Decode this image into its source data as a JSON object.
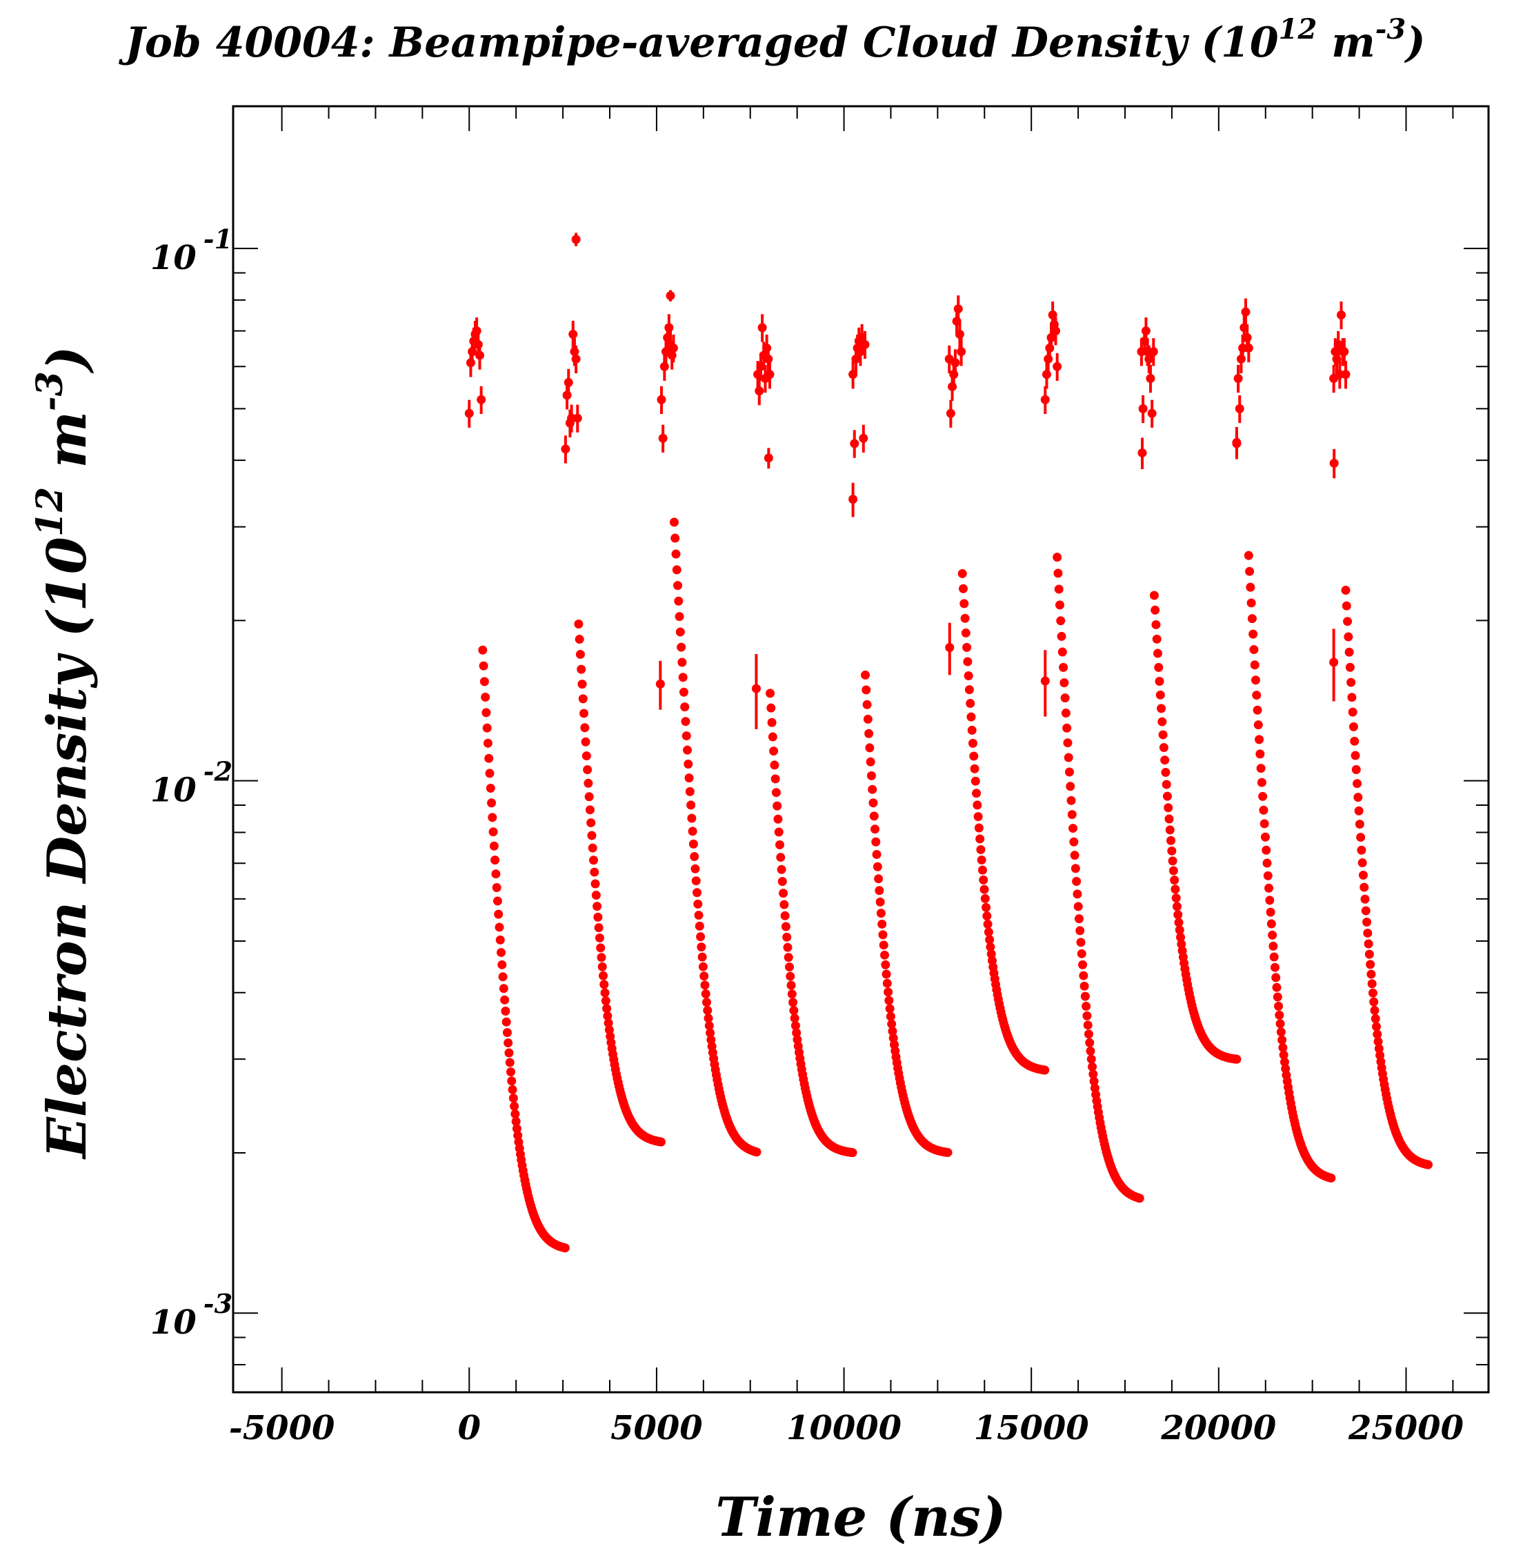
{
  "chart_data": {
    "type": "scatter",
    "title": {
      "main": "Job 40004: Beampipe-averaged Cloud Density (10",
      "sup1": "12",
      "mid": " m",
      "sup2": "-3",
      "end": ")"
    },
    "xlabel": "Time (ns)",
    "ylabel": {
      "main": "Electron Density (10",
      "sup1": "12",
      "mid": " m",
      "sup2": "-3",
      "end": ")"
    },
    "x_scale": "linear",
    "y_scale": "log",
    "xlim": [
      -6300,
      27200
    ],
    "ylim": [
      0.00071,
      0.185
    ],
    "x_ticks": [
      -5000,
      0,
      5000,
      10000,
      15000,
      20000,
      25000
    ],
    "x_tick_labels": [
      "-5000",
      "0",
      "5000",
      "10000",
      "15000",
      "20000",
      "25000"
    ],
    "y_ticks": [
      {
        "value": 0.1,
        "base": "10",
        "exp": "-1"
      },
      {
        "value": 0.01,
        "base": "10",
        "exp": "-2"
      },
      {
        "value": 0.001,
        "base": "10",
        "exp": "-3"
      }
    ],
    "grid": false,
    "legend": "none",
    "marker_color": "#ff0000",
    "series": [
      {
        "points": [
          {
            "x": 5100,
            "y": 0.0152,
            "err": 0.0016
          },
          {
            "x": 7660,
            "y": 0.0149,
            "err": 0.0024
          },
          {
            "x": 12820,
            "y": 0.0178,
            "err": 0.002
          },
          {
            "x": 15370,
            "y": 0.0154,
            "err": 0.0022
          },
          {
            "x": 23070,
            "y": 0.0167,
            "err": 0.0026
          },
          {
            "x": 10240,
            "y": 0.0338,
            "err": 0.0025
          },
          {
            "x": 2850,
            "y": 0.104,
            "err": 0.003
          },
          {
            "x": 5370,
            "y": 0.0815,
            "err": 0.002
          },
          {
            "x": 7990,
            "y": 0.0404,
            "err": 0.0018
          },
          {
            "x": 17960,
            "y": 0.0413,
            "err": 0.0028
          },
          {
            "x": 20480,
            "y": 0.0432,
            "err": 0.003
          },
          {
            "x": 23080,
            "y": 0.0395,
            "err": 0.0025
          }
        ],
        "clusters": [
          {
            "t0": 0,
            "base": [
              0.049,
              0.061,
              0.064,
              0.067,
              0.069,
              0.07,
              0.066,
              0.063,
              0.052
            ]
          },
          {
            "t0": 2570,
            "base": [
              0.042,
              0.053,
              0.056,
              0.047,
              0.048,
              0.069,
              0.064,
              0.062,
              0.048
            ]
          },
          {
            "t0": 5130,
            "base": [
              0.052,
              0.044,
              0.06,
              0.064,
              0.068,
              0.071,
              0.066,
              0.063,
              0.065
            ]
          },
          {
            "t0": 7700,
            "base": [
              0.058,
              0.054,
              0.06,
              0.071,
              0.063,
              0.057,
              0.065,
              0.062,
              0.058
            ]
          },
          {
            "t0": 10240,
            "base": [
              0.058,
              0.043,
              0.062,
              0.065,
              0.067,
              0.064,
              0.068,
              0.044,
              0.066
            ]
          },
          {
            "t0": 12810,
            "base": [
              0.062,
              0.049,
              0.055,
              0.058,
              0.061,
              0.073,
              0.077,
              0.069,
              0.064
            ]
          },
          {
            "t0": 15370,
            "base": [
              0.052,
              0.058,
              0.062,
              0.065,
              0.068,
              0.075,
              0.072,
              0.07,
              0.06
            ]
          },
          {
            "t0": 17940,
            "base": [
              0.064,
              0.05,
              0.067,
              0.07,
              0.064,
              0.062,
              0.057,
              0.049,
              0.064
            ]
          },
          {
            "t0": 20480,
            "base": [
              0.043,
              0.057,
              0.05,
              0.062,
              0.065,
              0.071,
              0.076,
              0.068,
              0.065
            ]
          },
          {
            "t0": 23070,
            "base": [
              0.057,
              0.064,
              0.062,
              0.066,
              0.058,
              0.075,
              0.064,
              0.064,
              0.058
            ]
          }
        ],
        "decays": [
          {
            "t0": 360,
            "peak": 0.0176,
            "end": 0.00131,
            "n": 95
          },
          {
            "t0": 2920,
            "peak": 0.0197,
            "end": 0.00208,
            "n": 95
          },
          {
            "t0": 5470,
            "peak": 0.0306,
            "end": 0.00198,
            "n": 95
          },
          {
            "t0": 8030,
            "peak": 0.0146,
            "end": 0.00199,
            "n": 95
          },
          {
            "t0": 10570,
            "peak": 0.0158,
            "end": 0.00199,
            "n": 95
          },
          {
            "t0": 13160,
            "peak": 0.0245,
            "end": 0.00284,
            "n": 95
          },
          {
            "t0": 15690,
            "peak": 0.0263,
            "end": 0.00162,
            "n": 95
          },
          {
            "t0": 18280,
            "peak": 0.0223,
            "end": 0.00298,
            "n": 95
          },
          {
            "t0": 20800,
            "peak": 0.0265,
            "end": 0.00177,
            "n": 95
          },
          {
            "t0": 23390,
            "peak": 0.0228,
            "end": 0.00188,
            "n": 95
          }
        ]
      }
    ]
  }
}
